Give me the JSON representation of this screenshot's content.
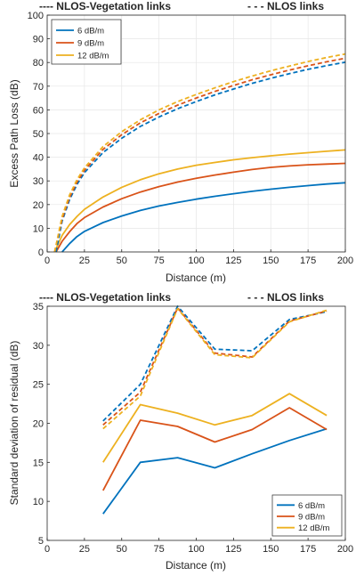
{
  "chart_data": [
    {
      "type": "line",
      "header_left": "---- NLOS-Vegetation links",
      "header_right": "- - - NLOS links",
      "xlabel": "Distance (m)",
      "ylabel": "Excess Path Loss (dB)",
      "xlim": [
        0,
        200
      ],
      "ylim": [
        0,
        100
      ],
      "xticks": [
        0,
        25,
        50,
        75,
        100,
        125,
        150,
        175,
        200
      ],
      "yticks": [
        0,
        10,
        20,
        30,
        40,
        50,
        60,
        70,
        80,
        90,
        100
      ],
      "grid": true,
      "legend_position": "top-left",
      "legend": [
        "6 dB/m",
        "9 dB/m",
        "12 dB/m"
      ],
      "colors": [
        "#0072BD",
        "#D95319",
        "#EDB120"
      ],
      "x": [
        10,
        15,
        20,
        25,
        37.5,
        50,
        62.5,
        75,
        87.5,
        100,
        112.5,
        125,
        137.5,
        150,
        162.5,
        175,
        187.5,
        200
      ],
      "series": [
        {
          "name": "6 dB/m",
          "style": "solid",
          "color": "#0072BD",
          "x": [
            10,
            15,
            20,
            25,
            37.5,
            50,
            62.5,
            75,
            87.5,
            100,
            112.5,
            125,
            137.5,
            150,
            162.5,
            175,
            187.5,
            200
          ],
          "values": [
            0,
            3.5,
            6.5,
            8.7,
            12.4,
            15.2,
            17.5,
            19.4,
            20.9,
            22.3,
            23.5,
            24.6,
            25.6,
            26.5,
            27.3,
            28.0,
            28.7,
            29.2
          ]
        },
        {
          "name": "9 dB/m",
          "style": "solid",
          "color": "#D95319",
          "x": [
            6,
            10,
            15,
            20,
            25,
            37.5,
            50,
            62.5,
            75,
            87.5,
            100,
            112.5,
            125,
            137.5,
            150,
            162.5,
            175,
            187.5,
            200
          ],
          "values": [
            0,
            4.5,
            8.5,
            12.0,
            14.5,
            19.0,
            22.5,
            25.3,
            27.6,
            29.5,
            31.1,
            32.5,
            33.7,
            34.8,
            35.7,
            36.3,
            36.8,
            37.1,
            37.4
          ]
        },
        {
          "name": "12 dB/m",
          "style": "solid",
          "color": "#EDB120",
          "x": [
            5,
            10,
            15,
            20,
            25,
            37.5,
            50,
            62.5,
            75,
            87.5,
            100,
            112.5,
            125,
            137.5,
            150,
            162.5,
            175,
            187.5,
            200
          ],
          "values": [
            0,
            7.0,
            11.5,
            15.0,
            18.0,
            23.2,
            27.3,
            30.5,
            33.0,
            35.0,
            36.6,
            37.8,
            38.9,
            39.8,
            40.6,
            41.3,
            41.9,
            42.5,
            43.1
          ]
        },
        {
          "name": "6 dB/m",
          "style": "dashed",
          "color": "#0072BD",
          "x": [
            6,
            10,
            15,
            20,
            25,
            37.5,
            50,
            62.5,
            75,
            87.5,
            100,
            112.5,
            125,
            137.5,
            150,
            162.5,
            175,
            187.5,
            200
          ],
          "values": [
            0,
            13,
            22,
            28.5,
            33.5,
            42,
            48,
            53,
            57,
            60.5,
            63.5,
            66.3,
            68.8,
            71.2,
            73.3,
            75.3,
            77.1,
            78.7,
            80.1
          ]
        },
        {
          "name": "9 dB/m",
          "style": "dashed",
          "color": "#D95319",
          "x": [
            5,
            10,
            15,
            20,
            25,
            37.5,
            50,
            62.5,
            75,
            87.5,
            100,
            112.5,
            125,
            137.5,
            150,
            162.5,
            175,
            187.5,
            200
          ],
          "values": [
            0,
            14,
            23,
            29.5,
            34.5,
            43.3,
            49.5,
            54.5,
            58.5,
            62,
            65,
            67.8,
            70.3,
            72.7,
            74.8,
            76.8,
            78.6,
            80.3,
            81.8
          ]
        },
        {
          "name": "12 dB/m",
          "style": "dashed",
          "color": "#EDB120",
          "x": [
            5,
            10,
            15,
            20,
            25,
            37.5,
            50,
            62.5,
            75,
            87.5,
            100,
            112.5,
            125,
            137.5,
            150,
            162.5,
            175,
            187.5,
            200
          ],
          "values": [
            0,
            15,
            24,
            30.5,
            35.5,
            44.5,
            50.8,
            55.8,
            60,
            63.5,
            66.5,
            69.3,
            71.9,
            74.3,
            76.5,
            78.5,
            80.4,
            82.1,
            83.6
          ]
        }
      ]
    },
    {
      "type": "line",
      "header_left": "---- NLOS-Vegetation links",
      "header_right": "- - - NLOS links",
      "xlabel": "Distance (m)",
      "ylabel": "Standard deviation of residual (dB)",
      "xlim": [
        0,
        200
      ],
      "ylim": [
        5,
        35
      ],
      "xticks": [
        0,
        25,
        50,
        75,
        100,
        125,
        150,
        175,
        200
      ],
      "yticks": [
        5,
        10,
        15,
        20,
        25,
        30,
        35
      ],
      "grid": false,
      "legend_position": "bottom-right",
      "legend": [
        "6 dB/m",
        "9 dB/m",
        "12 dB/m"
      ],
      "colors": [
        "#0072BD",
        "#D95319",
        "#EDB120"
      ],
      "x": [
        37.5,
        62.5,
        87.5,
        112.5,
        137.5,
        162.5,
        187.5
      ],
      "series": [
        {
          "name": "6 dB/m",
          "style": "solid",
          "color": "#0072BD",
          "values": [
            8.4,
            15.0,
            15.6,
            14.3,
            16.1,
            17.8,
            19.3
          ]
        },
        {
          "name": "9 dB/m",
          "style": "solid",
          "color": "#D95319",
          "values": [
            11.4,
            20.4,
            19.6,
            17.6,
            19.2,
            22.0,
            19.2
          ]
        },
        {
          "name": "12 dB/m",
          "style": "solid",
          "color": "#EDB120",
          "values": [
            15.0,
            22.4,
            21.3,
            19.8,
            21.0,
            23.8,
            21.0
          ]
        },
        {
          "name": "6 dB/m",
          "style": "dashed",
          "color": "#0072BD",
          "values": [
            20.3,
            25.0,
            35.0,
            29.5,
            29.3,
            33.3,
            34.3
          ]
        },
        {
          "name": "9 dB/m",
          "style": "dashed",
          "color": "#D95319",
          "values": [
            19.8,
            24.0,
            34.8,
            29.0,
            28.5,
            33.1,
            34.4
          ]
        },
        {
          "name": "12 dB/m",
          "style": "dashed",
          "color": "#EDB120",
          "values": [
            19.3,
            23.5,
            34.7,
            28.8,
            28.4,
            33.0,
            34.5
          ]
        }
      ]
    }
  ]
}
